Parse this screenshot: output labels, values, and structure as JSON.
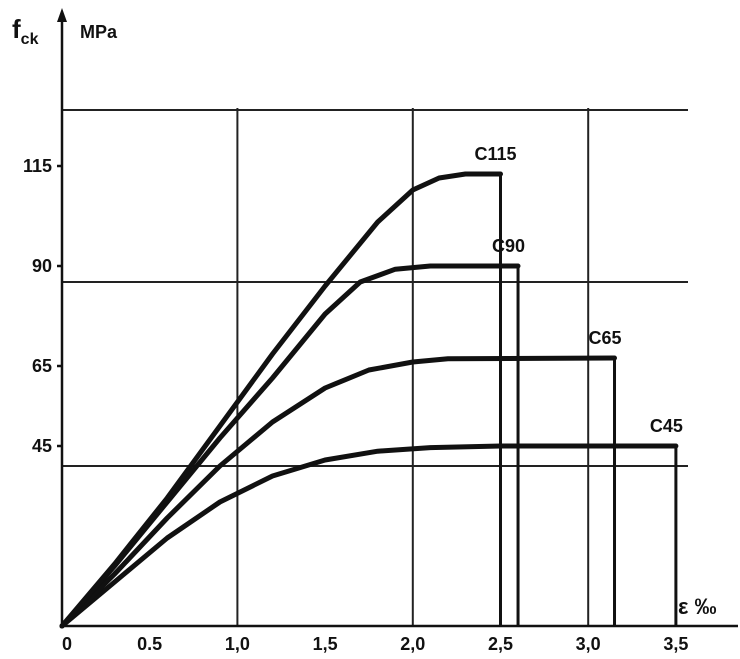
{
  "chart_data": {
    "type": "line",
    "ylabel_symbol": "f",
    "ylabel_sub": "ck",
    "yunit": "MPa",
    "xlabel": "ε ‰",
    "xlim": [
      0,
      3.5
    ],
    "ylim": [
      0,
      130
    ],
    "xticks": [
      {
        "v": 0,
        "label": "0"
      },
      {
        "v": 0.5,
        "label": "0.5"
      },
      {
        "v": 1.0,
        "label": "1,0"
      },
      {
        "v": 1.5,
        "label": "1,5"
      },
      {
        "v": 2.0,
        "label": "2,0"
      },
      {
        "v": 2.5,
        "label": "2,5"
      },
      {
        "v": 3.0,
        "label": "3,0"
      },
      {
        "v": 3.5,
        "label": "3,5"
      }
    ],
    "yticks": [
      {
        "v": 45,
        "label": "45"
      },
      {
        "v": 65,
        "label": "65"
      },
      {
        "v": 90,
        "label": "90"
      },
      {
        "v": 115,
        "label": "115"
      }
    ],
    "grid_v": [
      1.0,
      2.0,
      3.0
    ],
    "grid_h": [
      40,
      86,
      129
    ],
    "series": [
      {
        "name": "C45",
        "ultimate_strain": 3.5,
        "points": [
          [
            0,
            0
          ],
          [
            0.3,
            11
          ],
          [
            0.6,
            22
          ],
          [
            0.9,
            31
          ],
          [
            1.2,
            37.5
          ],
          [
            1.5,
            41.5
          ],
          [
            1.8,
            43.7
          ],
          [
            2.1,
            44.6
          ],
          [
            2.5,
            45
          ],
          [
            3.5,
            45
          ]
        ]
      },
      {
        "name": "C65",
        "ultimate_strain": 3.15,
        "points": [
          [
            0,
            0
          ],
          [
            0.3,
            13
          ],
          [
            0.6,
            27
          ],
          [
            0.9,
            40
          ],
          [
            1.2,
            51
          ],
          [
            1.5,
            59.5
          ],
          [
            1.75,
            64
          ],
          [
            2.0,
            66
          ],
          [
            2.2,
            66.8
          ],
          [
            3.15,
            67
          ]
        ]
      },
      {
        "name": "C90",
        "ultimate_strain": 2.6,
        "points": [
          [
            0,
            0
          ],
          [
            0.3,
            15
          ],
          [
            0.6,
            31
          ],
          [
            0.9,
            47
          ],
          [
            1.2,
            62
          ],
          [
            1.5,
            78
          ],
          [
            1.7,
            86
          ],
          [
            1.9,
            89.2
          ],
          [
            2.1,
            90
          ],
          [
            2.6,
            90
          ]
        ]
      },
      {
        "name": "C115",
        "ultimate_strain": 2.5,
        "points": [
          [
            0,
            0
          ],
          [
            0.3,
            15.5
          ],
          [
            0.6,
            32
          ],
          [
            0.9,
            50
          ],
          [
            1.2,
            68
          ],
          [
            1.5,
            85
          ],
          [
            1.8,
            101
          ],
          [
            2.0,
            109
          ],
          [
            2.15,
            112
          ],
          [
            2.3,
            113
          ],
          [
            2.5,
            113
          ]
        ]
      }
    ]
  }
}
